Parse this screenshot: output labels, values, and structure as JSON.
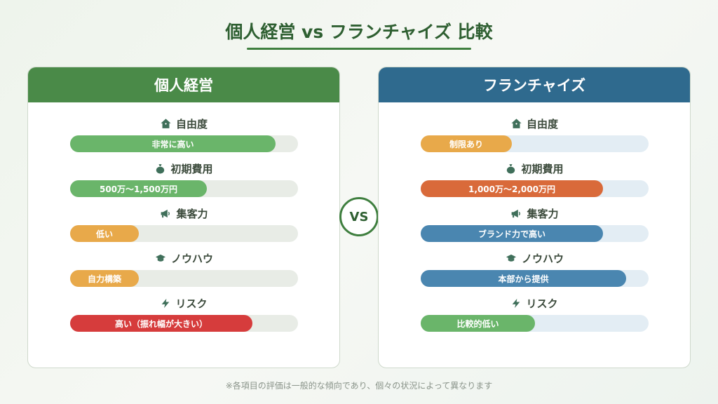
{
  "title": "個人経営 vs フランチャイズ 比較",
  "vs_label": "VS",
  "footnote": "※各項目の評価は一般的な傾向であり、個々の状況によって異なります",
  "colors": {
    "green_header": "#4a8a48",
    "blue_header": "#2f6a8e",
    "bar_green": "#6ab56a",
    "bar_orange": "#e8a94a",
    "bar_red": "#d63c3c",
    "bar_dark_orange": "#d96a3a",
    "bar_blue": "#4a86b0"
  },
  "left": {
    "header": "個人経営",
    "rows": [
      {
        "label": "自由度",
        "icon": "house-icon",
        "value": "非常に高い",
        "level": 0.9,
        "color": "#6ab56a"
      },
      {
        "label": "初期費用",
        "icon": "money-bag-icon",
        "value": "500万〜1,500万円",
        "level": 0.6,
        "color": "#6ab56a"
      },
      {
        "label": "集客力",
        "icon": "megaphone-icon",
        "value": "低い",
        "level": 0.3,
        "color": "#e8a94a"
      },
      {
        "label": "ノウハウ",
        "icon": "graduation-cap-icon",
        "value": "自力構築",
        "level": 0.3,
        "color": "#e8a94a"
      },
      {
        "label": "リスク",
        "icon": "lightning-icon",
        "value": "高い（振れ幅が大きい）",
        "level": 0.8,
        "color": "#d63c3c"
      }
    ]
  },
  "right": {
    "header": "フランチャイズ",
    "rows": [
      {
        "label": "自由度",
        "icon": "house-icon",
        "value": "制限あり",
        "level": 0.4,
        "color": "#e8a94a"
      },
      {
        "label": "初期費用",
        "icon": "money-bag-icon",
        "value": "1,000万〜2,000万円",
        "level": 0.8,
        "color": "#d96a3a"
      },
      {
        "label": "集客力",
        "icon": "megaphone-icon",
        "value": "ブランド力で高い",
        "level": 0.8,
        "color": "#4a86b0"
      },
      {
        "label": "ノウハウ",
        "icon": "graduation-cap-icon",
        "value": "本部から提供",
        "level": 0.9,
        "color": "#4a86b0"
      },
      {
        "label": "リスク",
        "icon": "lightning-icon",
        "value": "比較的低い",
        "level": 0.5,
        "color": "#6ab56a"
      }
    ]
  }
}
